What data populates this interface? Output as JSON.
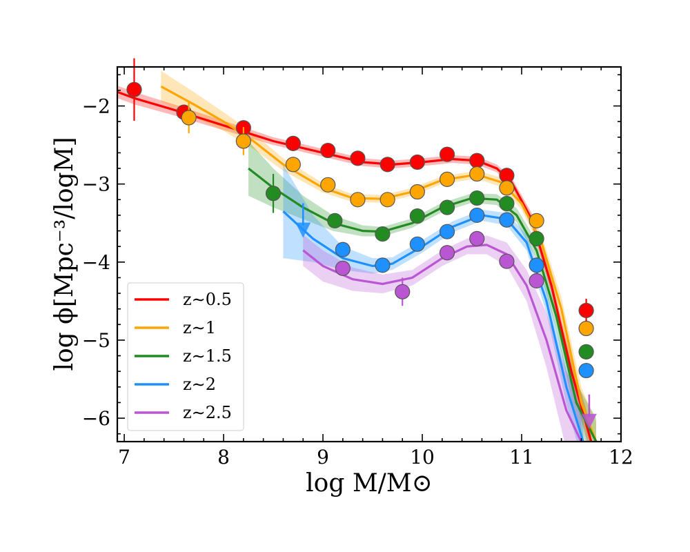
{
  "chart_data": {
    "type": "line",
    "xlabel": "log M/M⊙",
    "ylabel": "log ϕ[Mpc⁻³/logM]",
    "xlim": [
      6.93,
      12.0
    ],
    "ylim": [
      -6.3,
      -1.5
    ],
    "x_ticks": [
      7,
      8,
      9,
      10,
      11,
      12
    ],
    "x_tick_labels": [
      "7",
      "8",
      "9",
      "10",
      "11",
      "12"
    ],
    "y_ticks": [
      -2,
      -3,
      -4,
      -5,
      -6
    ],
    "y_tick_labels": [
      "−2",
      "−3",
      "−4",
      "−5",
      "−6"
    ],
    "legend_position": "lower-left",
    "series": [
      {
        "name": "z∼0.5",
        "color": "#ff0000",
        "fit_x": [
          6.93,
          7.1,
          7.5,
          8.0,
          8.5,
          9.0,
          9.4,
          9.7,
          10.0,
          10.3,
          10.55,
          10.75,
          10.9,
          11.1,
          11.3,
          11.5,
          11.7
        ],
        "fit_y": [
          -1.82,
          -1.9,
          -2.05,
          -2.25,
          -2.45,
          -2.6,
          -2.72,
          -2.75,
          -2.72,
          -2.68,
          -2.7,
          -2.8,
          -2.98,
          -3.45,
          -4.3,
          -5.4,
          -6.3
        ],
        "band_width": [
          0.08,
          0.08,
          0.07,
          0.06,
          0.05,
          0.05,
          0.05,
          0.05,
          0.05,
          0.05,
          0.05,
          0.05,
          0.06,
          0.08,
          0.1,
          0.15,
          0.2
        ],
        "points": [
          {
            "x": 7.1,
            "y": -1.79,
            "err": 0.4
          },
          {
            "x": 7.6,
            "y": -2.08,
            "err": 0
          },
          {
            "x": 8.2,
            "y": -2.28,
            "err": 0
          },
          {
            "x": 8.7,
            "y": -2.48,
            "err": 0
          },
          {
            "x": 9.05,
            "y": -2.57,
            "err": 0
          },
          {
            "x": 9.35,
            "y": -2.67,
            "err": 0
          },
          {
            "x": 9.65,
            "y": -2.75,
            "err": 0
          },
          {
            "x": 9.95,
            "y": -2.72,
            "err": 0
          },
          {
            "x": 10.25,
            "y": -2.62,
            "err": 0
          },
          {
            "x": 10.55,
            "y": -2.7,
            "err": 0
          },
          {
            "x": 10.85,
            "y": -2.89,
            "err": 0
          },
          {
            "x": 11.65,
            "y": -4.62,
            "err": 0.15
          }
        ],
        "upper_limits": []
      },
      {
        "name": "z∼1",
        "color": "#ffa500",
        "fit_x": [
          7.37,
          7.7,
          8.0,
          8.3,
          8.6,
          9.0,
          9.3,
          9.6,
          9.9,
          10.2,
          10.55,
          10.8,
          11.0,
          11.2,
          11.4,
          11.6,
          11.75
        ],
        "fit_y": [
          -1.75,
          -1.98,
          -2.2,
          -2.45,
          -2.75,
          -3.05,
          -3.18,
          -3.19,
          -3.1,
          -2.95,
          -2.88,
          -2.98,
          -3.25,
          -3.75,
          -4.6,
          -5.8,
          -6.3
        ],
        "band_width": [
          0.2,
          0.16,
          0.12,
          0.1,
          0.08,
          0.06,
          0.05,
          0.05,
          0.05,
          0.05,
          0.05,
          0.06,
          0.08,
          0.1,
          0.15,
          0.2,
          0.25
        ],
        "points": [
          {
            "x": 7.65,
            "y": -2.15,
            "err": 0.2
          },
          {
            "x": 8.2,
            "y": -2.45,
            "err": 0.18
          },
          {
            "x": 8.7,
            "y": -2.75,
            "err": 0
          },
          {
            "x": 9.05,
            "y": -3.01,
            "err": 0
          },
          {
            "x": 9.35,
            "y": -3.2,
            "err": 0
          },
          {
            "x": 9.65,
            "y": -3.2,
            "err": 0
          },
          {
            "x": 9.95,
            "y": -3.1,
            "err": 0
          },
          {
            "x": 10.25,
            "y": -2.94,
            "err": 0
          },
          {
            "x": 10.55,
            "y": -2.87,
            "err": 0
          },
          {
            "x": 10.85,
            "y": -3.05,
            "err": 0
          },
          {
            "x": 11.15,
            "y": -3.47,
            "err": 0
          },
          {
            "x": 11.65,
            "y": -4.85,
            "err": 0
          }
        ],
        "upper_limits": []
      },
      {
        "name": "z∼1.5",
        "color": "#228b22",
        "fit_x": [
          8.25,
          8.5,
          8.8,
          9.1,
          9.4,
          9.6,
          9.9,
          10.2,
          10.5,
          10.75,
          10.95,
          11.15,
          11.35,
          11.55,
          11.75
        ],
        "fit_y": [
          -2.8,
          -3.05,
          -3.3,
          -3.5,
          -3.6,
          -3.61,
          -3.5,
          -3.3,
          -3.18,
          -3.2,
          -3.4,
          -3.85,
          -4.7,
          -5.8,
          -6.3
        ],
        "band_width": [
          0.35,
          0.25,
          0.15,
          0.1,
          0.07,
          0.06,
          0.06,
          0.06,
          0.06,
          0.07,
          0.09,
          0.12,
          0.17,
          0.25,
          0.3
        ],
        "points": [
          {
            "x": 8.5,
            "y": -3.12,
            "err": 0.25
          },
          {
            "x": 9.12,
            "y": -3.47,
            "err": 0
          },
          {
            "x": 9.6,
            "y": -3.64,
            "err": 0
          },
          {
            "x": 9.95,
            "y": -3.41,
            "err": 0
          },
          {
            "x": 10.25,
            "y": -3.3,
            "err": 0
          },
          {
            "x": 10.55,
            "y": -3.18,
            "err": 0
          },
          {
            "x": 10.85,
            "y": -3.25,
            "err": 0
          },
          {
            "x": 11.15,
            "y": -3.7,
            "err": 0
          },
          {
            "x": 11.65,
            "y": -5.15,
            "err": 0
          }
        ],
        "upper_limits": []
      },
      {
        "name": "z∼2",
        "color": "#1e90ff",
        "fit_x": [
          8.6,
          8.9,
          9.2,
          9.5,
          9.7,
          10.0,
          10.3,
          10.6,
          10.85,
          11.05,
          11.25,
          11.45,
          11.62
        ],
        "fit_y": [
          -3.35,
          -3.7,
          -3.95,
          -4.05,
          -4.02,
          -3.8,
          -3.55,
          -3.4,
          -3.45,
          -3.75,
          -4.5,
          -5.6,
          -6.3
        ],
        "band_width": [
          0.6,
          0.3,
          0.15,
          0.1,
          0.08,
          0.08,
          0.07,
          0.07,
          0.08,
          0.1,
          0.15,
          0.22,
          0.3
        ],
        "points": [
          {
            "x": 9.2,
            "y": -3.84,
            "err": 0
          },
          {
            "x": 9.6,
            "y": -4.04,
            "err": 0
          },
          {
            "x": 9.95,
            "y": -3.77,
            "err": 0
          },
          {
            "x": 10.25,
            "y": -3.61,
            "err": 0
          },
          {
            "x": 10.55,
            "y": -3.4,
            "err": 0
          },
          {
            "x": 10.85,
            "y": -3.46,
            "err": 0
          },
          {
            "x": 11.15,
            "y": -4.04,
            "err": 0
          },
          {
            "x": 11.65,
            "y": -5.39,
            "err": 0
          }
        ],
        "upper_limits": [
          {
            "x": 8.8,
            "y": -3.6
          }
        ]
      },
      {
        "name": "z∼2.5",
        "color": "#ba55d3",
        "fit_x": [
          8.8,
          9.0,
          9.3,
          9.6,
          9.9,
          10.2,
          10.45,
          10.65,
          10.85,
          11.05,
          11.25,
          11.45,
          11.6
        ],
        "fit_y": [
          -3.85,
          -4.05,
          -4.22,
          -4.28,
          -4.2,
          -3.95,
          -3.8,
          -3.78,
          -3.9,
          -4.3,
          -5.0,
          -5.9,
          -6.3
        ],
        "band_width": [
          0.2,
          0.2,
          0.15,
          0.12,
          0.1,
          0.1,
          0.1,
          0.12,
          0.15,
          0.2,
          0.35,
          0.5,
          0.6
        ],
        "points": [
          {
            "x": 9.2,
            "y": -4.08,
            "err": 0
          },
          {
            "x": 9.8,
            "y": -4.38,
            "err": 0.18
          },
          {
            "x": 10.25,
            "y": -3.88,
            "err": 0
          },
          {
            "x": 10.55,
            "y": -3.7,
            "err": 0
          },
          {
            "x": 10.85,
            "y": -3.99,
            "err": 0
          },
          {
            "x": 11.15,
            "y": -4.24,
            "err": 0
          }
        ],
        "upper_limits": [
          {
            "x": 11.68,
            "y": -6.05
          }
        ]
      }
    ]
  }
}
